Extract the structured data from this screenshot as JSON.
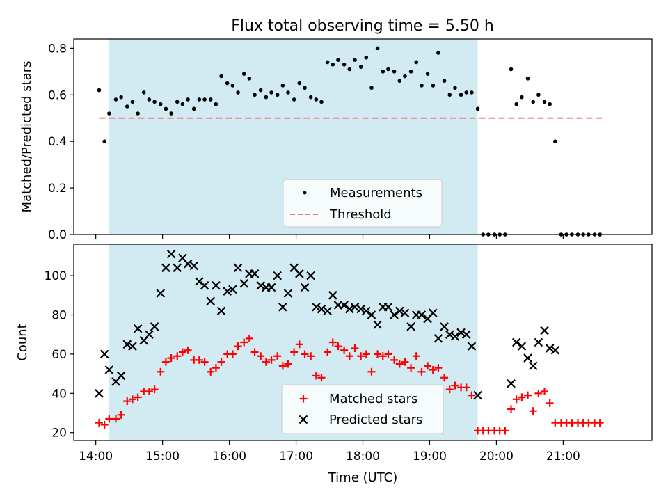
{
  "title": "Flux total observing time = 5.50 h",
  "chart_data": [
    {
      "type": "scatter",
      "panel": "top",
      "ylabel": "Matched/Predicted stars",
      "xlim": [
        13.67,
        22.33
      ],
      "ylim": [
        0,
        0.84
      ],
      "yticks": [
        0.0,
        0.2,
        0.4,
        0.6,
        0.8
      ],
      "ytick_labels": [
        "0.0",
        "0.2",
        "0.4",
        "0.6",
        "0.8"
      ],
      "shaded_span": [
        14.2,
        19.72
      ],
      "shaded_color": "#add8e6",
      "legend": {
        "placement": "lower-center",
        "entries": [
          "Measurements",
          "Threshold"
        ]
      },
      "threshold": {
        "name": "Threshold",
        "value": 0.5,
        "x_range": [
          14.05,
          21.58
        ],
        "color": "#f08080"
      },
      "series": [
        {
          "name": "Measurements",
          "color": "#000000",
          "x": [
            14.05,
            14.13,
            14.2,
            14.3,
            14.38,
            14.47,
            14.55,
            14.63,
            14.72,
            14.8,
            14.88,
            14.97,
            15.05,
            15.13,
            15.22,
            15.3,
            15.38,
            15.47,
            15.55,
            15.63,
            15.72,
            15.8,
            15.88,
            15.97,
            16.05,
            16.13,
            16.22,
            16.3,
            16.38,
            16.47,
            16.55,
            16.63,
            16.72,
            16.8,
            16.88,
            16.97,
            17.05,
            17.13,
            17.22,
            17.3,
            17.38,
            17.47,
            17.55,
            17.63,
            17.72,
            17.8,
            17.88,
            17.97,
            18.05,
            18.13,
            18.22,
            18.3,
            18.38,
            18.47,
            18.55,
            18.63,
            18.72,
            18.8,
            18.88,
            18.97,
            19.05,
            19.13,
            19.22,
            19.3,
            19.38,
            19.47,
            19.55,
            19.63,
            19.72,
            19.8,
            19.88,
            19.97,
            20.05,
            20.13,
            20.22,
            20.3,
            20.38,
            20.47,
            20.55,
            20.63,
            20.72,
            20.8,
            20.88,
            20.97,
            21.05,
            21.13,
            21.22,
            21.3,
            21.38,
            21.47,
            21.55
          ],
          "y": [
            0.62,
            0.4,
            0.52,
            0.58,
            0.59,
            0.55,
            0.57,
            0.52,
            0.61,
            0.58,
            0.57,
            0.56,
            0.54,
            0.52,
            0.57,
            0.56,
            0.58,
            0.54,
            0.58,
            0.58,
            0.58,
            0.56,
            0.68,
            0.65,
            0.64,
            0.61,
            0.69,
            0.67,
            0.6,
            0.62,
            0.59,
            0.61,
            0.6,
            0.64,
            0.61,
            0.58,
            0.65,
            0.63,
            0.59,
            0.58,
            0.57,
            0.74,
            0.73,
            0.75,
            0.73,
            0.71,
            0.75,
            0.72,
            0.76,
            0.63,
            0.8,
            0.7,
            0.71,
            0.7,
            0.66,
            0.68,
            0.7,
            0.74,
            0.64,
            0.69,
            0.64,
            0.78,
            0.66,
            0.6,
            0.63,
            0.6,
            0.61,
            0.61,
            0.54,
            0.0,
            0.0,
            0.0,
            0.0,
            0.0,
            0.71,
            0.56,
            0.59,
            0.67,
            0.57,
            0.6,
            0.57,
            0.56,
            0.4,
            0.0,
            0.0,
            0.0,
            0.0,
            0.0,
            0.0,
            0.0,
            0.0
          ]
        }
      ]
    },
    {
      "type": "scatter",
      "panel": "bottom",
      "xlabel": "Time (UTC)",
      "ylabel": "Count",
      "xlim": [
        13.67,
        22.33
      ],
      "ylim": [
        16,
        116
      ],
      "yticks": [
        20,
        40,
        60,
        80,
        100
      ],
      "xticks": [
        14,
        15,
        16,
        17,
        18,
        19,
        20,
        21
      ],
      "xtick_labels": [
        "14:00",
        "15:00",
        "16:00",
        "17:00",
        "18:00",
        "19:00",
        "20:00",
        "21:00"
      ],
      "shaded_span": [
        14.2,
        19.72
      ],
      "shaded_color": "#add8e6",
      "legend": {
        "placement": "lower-center",
        "entries": [
          "Matched stars",
          "Predicted stars"
        ]
      },
      "x": [
        14.05,
        14.13,
        14.2,
        14.3,
        14.38,
        14.47,
        14.55,
        14.63,
        14.72,
        14.8,
        14.88,
        14.97,
        15.05,
        15.13,
        15.22,
        15.3,
        15.38,
        15.47,
        15.55,
        15.63,
        15.72,
        15.8,
        15.88,
        15.97,
        16.05,
        16.13,
        16.22,
        16.3,
        16.38,
        16.47,
        16.55,
        16.63,
        16.72,
        16.8,
        16.88,
        16.97,
        17.05,
        17.13,
        17.22,
        17.3,
        17.38,
        17.47,
        17.55,
        17.63,
        17.72,
        17.8,
        17.88,
        17.97,
        18.05,
        18.13,
        18.22,
        18.3,
        18.38,
        18.47,
        18.55,
        18.63,
        18.72,
        18.8,
        18.88,
        18.97,
        19.05,
        19.13,
        19.22,
        19.3,
        19.38,
        19.47,
        19.55,
        19.63,
        19.72,
        19.8,
        19.88,
        19.97,
        20.05,
        20.13,
        20.22,
        20.3,
        20.38,
        20.47,
        20.55,
        20.63,
        20.72,
        20.8,
        20.88,
        20.97,
        21.05,
        21.13,
        21.22,
        21.3,
        21.38,
        21.47,
        21.55
      ],
      "series": [
        {
          "name": "Matched stars",
          "marker": "+",
          "color": "#ff0000",
          "values": [
            25,
            24,
            27,
            27,
            29,
            36,
            37,
            38,
            41,
            41,
            42,
            51,
            56,
            58,
            59,
            61,
            62,
            57,
            57,
            56,
            51,
            53,
            56,
            60,
            60,
            64,
            66,
            68,
            61,
            59,
            56,
            57,
            59,
            54,
            55,
            61,
            65,
            60,
            59,
            49,
            48,
            61,
            66,
            64,
            62,
            59,
            63,
            59,
            60,
            51,
            60,
            59,
            60,
            57,
            55,
            56,
            53,
            59,
            51,
            54,
            52,
            53,
            48,
            42,
            44,
            43,
            43,
            39,
            21,
            21,
            21,
            21,
            21,
            21,
            32,
            37,
            38,
            39,
            31,
            40,
            41,
            35,
            25,
            25,
            25,
            25,
            25,
            25,
            25,
            25,
            25
          ]
        },
        {
          "name": "Predicted stars",
          "marker": "x",
          "color": "#000000",
          "values": [
            40,
            60,
            52,
            46,
            49,
            65,
            64,
            73,
            67,
            70,
            74,
            91,
            104,
            111,
            104,
            109,
            106,
            105,
            97,
            95,
            87,
            95,
            82,
            92,
            93,
            104,
            96,
            101,
            101,
            95,
            94,
            94,
            100,
            84,
            91,
            104,
            101,
            94,
            100,
            84,
            83,
            82,
            90,
            85,
            85,
            83,
            84,
            83,
            82,
            80,
            75,
            84,
            84,
            80,
            82,
            81,
            74,
            80,
            80,
            78,
            81,
            68,
            74,
            70,
            69,
            71,
            70,
            64,
            39,
            null,
            null,
            null,
            null,
            null,
            45,
            66,
            64,
            58,
            54,
            66,
            72,
            63,
            62,
            null,
            null,
            null,
            null,
            null,
            null,
            null,
            null
          ]
        }
      ]
    }
  ]
}
